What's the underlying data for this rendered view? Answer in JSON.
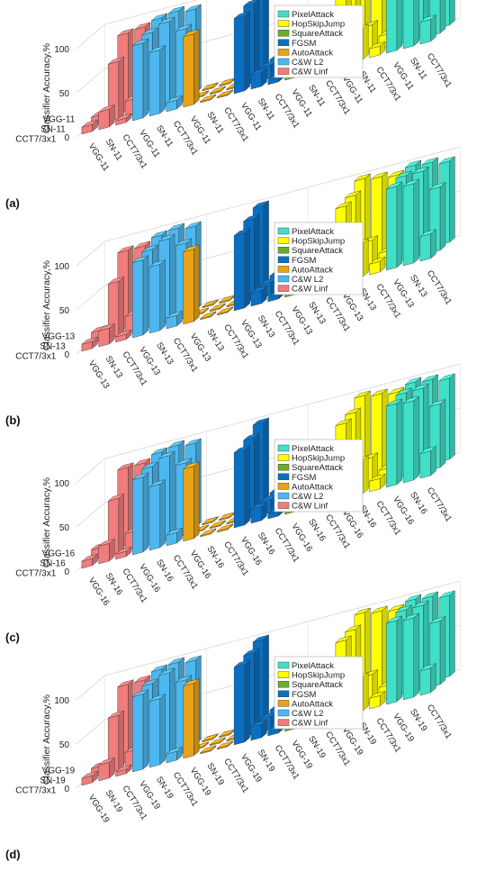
{
  "legend_items": [
    {
      "name": "PixelAttack",
      "color": "#40e0c8"
    },
    {
      "name": "HopSkipJump",
      "color": "#ffff00"
    },
    {
      "name": "SquareAttack",
      "color": "#6aad2a"
    },
    {
      "name": "FGSM",
      "color": "#0a6fc2"
    },
    {
      "name": "AutoAttack",
      "color": "#e8a317"
    },
    {
      "name": "C&W L2",
      "color": "#4db8f0"
    },
    {
      "name": "C&W Linf",
      "color": "#f07c7c"
    }
  ],
  "chart_data": [
    {
      "type": "bar3d",
      "panel_label": "(a)",
      "zlabel": "Classifier Accuracy,%",
      "zlim": [
        0,
        100
      ],
      "z_ticks": [
        "0",
        "50",
        "100"
      ],
      "depth_labels": [
        "CCT7/3x1",
        "SN-11",
        "VGG-11"
      ],
      "x_labels": [
        "VGG-11",
        "SN-11",
        "CCT7/3x1",
        "VGG-11",
        "SN-11",
        "CCT7/3x1",
        "VGG-11",
        "SN-11",
        "CCT7/3x1",
        "VGG-11",
        "SN-11",
        "CCT7/3x1",
        "VGG-11",
        "SN-11",
        "CCT7/3x1",
        "VGG-11",
        "SN-11",
        "CCT7/3x1",
        "VGG-11",
        "SN-11",
        "CCT7/3x1"
      ],
      "series": [
        {
          "name": "C&W Linf",
          "values": [
            [
              8,
              20,
              5
            ],
            [
              10,
              65,
              18
            ],
            [
              2,
              88,
              90
            ]
          ]
        },
        {
          "name": "C&W L2",
          "values": [
            [
              85,
              72,
              10
            ],
            [
              88,
              95,
              82
            ],
            [
              95,
              98,
              95
            ]
          ]
        },
        {
          "name": "AutoAttack",
          "values": [
            [
              80,
              0,
              0
            ],
            [
              0,
              0,
              0
            ],
            [
              0,
              0,
              0
            ]
          ]
        },
        {
          "name": "FGSM",
          "values": [
            [
              85,
              16,
              5
            ],
            [
              90,
              15,
              8
            ],
            [
              98,
              15,
              10
            ]
          ]
        },
        {
          "name": "SquareAttack",
          "values": [
            [
              50,
              15,
              8
            ],
            [
              52,
              20,
              10
            ],
            [
              24,
              20,
              15
            ]
          ]
        },
        {
          "name": "HopSkipJump",
          "values": [
            [
              82,
              35,
              10
            ],
            [
              85,
              30,
              15
            ],
            [
              98,
              95,
              92
            ]
          ]
        },
        {
          "name": "PixelAttack",
          "values": [
            [
              92,
              90,
              25
            ],
            [
              95,
              95,
              70
            ],
            [
              98,
              96,
              90
            ]
          ]
        }
      ]
    },
    {
      "type": "bar3d",
      "panel_label": "(b)",
      "zlabel": "Classifier Accuracy,%",
      "zlim": [
        0,
        100
      ],
      "z_ticks": [
        "0",
        "50",
        "100"
      ],
      "depth_labels": [
        "CCT7/3x1",
        "SN-13",
        "VGG-13"
      ],
      "x_labels": [
        "VGG-13",
        "SN-13",
        "CCT7/3x1",
        "VGG-13",
        "SN-13",
        "CCT7/3x1",
        "VGG-13",
        "SN-13",
        "CCT7/3x1",
        "VGG-13",
        "SN-13",
        "CCT7/3x1",
        "VGG-13",
        "SN-13",
        "CCT7/3x1",
        "VGG-13",
        "SN-13",
        "CCT7/3x1",
        "VGG-13",
        "SN-13",
        "CCT7/3x1"
      ],
      "series": [
        {
          "name": "C&W Linf",
          "values": [
            [
              8,
              18,
              6
            ],
            [
              12,
              62,
              20
            ],
            [
              3,
              88,
              88
            ]
          ]
        },
        {
          "name": "C&W L2",
          "values": [
            [
              85,
              75,
              12
            ],
            [
              88,
              95,
              85
            ],
            [
              95,
              98,
              95
            ]
          ]
        },
        {
          "name": "AutoAttack",
          "values": [
            [
              82,
              0,
              0
            ],
            [
              0,
              0,
              0
            ],
            [
              0,
              0,
              0
            ]
          ]
        },
        {
          "name": "FGSM",
          "values": [
            [
              85,
              15,
              5
            ],
            [
              92,
              15,
              8
            ],
            [
              98,
              16,
              10
            ]
          ]
        },
        {
          "name": "SquareAttack",
          "values": [
            [
              50,
              15,
              8
            ],
            [
              55,
              22,
              12
            ],
            [
              25,
              20,
              15
            ]
          ]
        },
        {
          "name": "HopSkipJump",
          "values": [
            [
              85,
              38,
              12
            ],
            [
              88,
              32,
              15
            ],
            [
              98,
              95,
              92
            ]
          ]
        },
        {
          "name": "PixelAttack",
          "values": [
            [
              92,
              90,
              28
            ],
            [
              95,
              95,
              72
            ],
            [
              98,
              96,
              92
            ]
          ]
        }
      ]
    },
    {
      "type": "bar3d",
      "panel_label": "(c)",
      "zlabel": "Classifier Accuracy,%",
      "zlim": [
        0,
        100
      ],
      "z_ticks": [
        "0",
        "50",
        "100"
      ],
      "depth_labels": [
        "CCT7/3x1",
        "SN-16",
        "VGG-16"
      ],
      "x_labels": [
        "VGG-16",
        "SN-16",
        "CCT7/3x1",
        "VGG-16",
        "SN-16",
        "CCT7/3x1",
        "VGG-16",
        "SN-16",
        "CCT7/3x1",
        "VGG-16",
        "SN-16",
        "CCT7/3x1",
        "VGG-16",
        "SN-16",
        "CCT7/3x1",
        "VGG-16",
        "SN-16",
        "CCT7/3x1",
        "VGG-16",
        "SN-16",
        "CCT7/3x1"
      ],
      "series": [
        {
          "name": "C&W Linf",
          "values": [
            [
              8,
              20,
              6
            ],
            [
              12,
              62,
              20
            ],
            [
              3,
              88,
              88
            ]
          ]
        },
        {
          "name": "C&W L2",
          "values": [
            [
              85,
              72,
              12
            ],
            [
              88,
              95,
              82
            ],
            [
              95,
              98,
              95
            ]
          ]
        },
        {
          "name": "AutoAttack",
          "values": [
            [
              82,
              0,
              0
            ],
            [
              0,
              0,
              0
            ],
            [
              0,
              0,
              0
            ]
          ]
        },
        {
          "name": "FGSM",
          "values": [
            [
              85,
              16,
              6
            ],
            [
              90,
              15,
              8
            ],
            [
              98,
              16,
              10
            ]
          ]
        },
        {
          "name": "SquareAttack",
          "values": [
            [
              52,
              15,
              8
            ],
            [
              55,
              22,
              12
            ],
            [
              26,
              20,
              15
            ]
          ]
        },
        {
          "name": "HopSkipJump",
          "values": [
            [
              85,
              38,
              12
            ],
            [
              88,
              32,
              15
            ],
            [
              98,
              95,
              92
            ]
          ]
        },
        {
          "name": "PixelAttack",
          "values": [
            [
              92,
              90,
              28
            ],
            [
              95,
              95,
              72
            ],
            [
              98,
              96,
              92
            ]
          ]
        }
      ]
    },
    {
      "type": "bar3d",
      "panel_label": "(d)",
      "zlabel": "Classifier Accuracy,%",
      "zlim": [
        0,
        100
      ],
      "z_ticks": [
        "0",
        "50",
        "100"
      ],
      "depth_labels": [
        "CCT7/3x1",
        "SN-19",
        "VGG-19"
      ],
      "x_labels": [
        "VGG-19",
        "SN-19",
        "CCT7/3x1",
        "VGG-19",
        "SN-19",
        "CCT7/3x1",
        "VGG-19",
        "SN-19",
        "CCT7/3x1",
        "VGG-19",
        "SN-19",
        "CCT7/3x1",
        "VGG-19",
        "SN-19",
        "CCT7/3x1",
        "VGG-19",
        "SN-19",
        "CCT7/3x1",
        "VGG-19",
        "SN-19",
        "CCT7/3x1"
      ],
      "series": [
        {
          "name": "C&W Linf",
          "values": [
            [
              8,
              18,
              5
            ],
            [
              10,
              62,
              18
            ],
            [
              3,
              88,
              88
            ]
          ]
        },
        {
          "name": "C&W L2",
          "values": [
            [
              85,
              75,
              10
            ],
            [
              88,
              95,
              82
            ],
            [
              95,
              98,
              95
            ]
          ]
        },
        {
          "name": "AutoAttack",
          "values": [
            [
              82,
              0,
              0
            ],
            [
              0,
              0,
              0
            ],
            [
              0,
              0,
              0
            ]
          ]
        },
        {
          "name": "FGSM",
          "values": [
            [
              88,
              15,
              5
            ],
            [
              92,
              15,
              8
            ],
            [
              98,
              16,
              10
            ]
          ]
        },
        {
          "name": "SquareAttack",
          "values": [
            [
              50,
              15,
              8
            ],
            [
              55,
              22,
              12
            ],
            [
              25,
              20,
              15
            ]
          ]
        },
        {
          "name": "HopSkipJump",
          "values": [
            [
              85,
              38,
              12
            ],
            [
              88,
              32,
              15
            ],
            [
              98,
              95,
              92
            ]
          ]
        },
        {
          "name": "PixelAttack",
          "values": [
            [
              92,
              90,
              28
            ],
            [
              95,
              95,
              72
            ],
            [
              98,
              96,
              92
            ]
          ]
        }
      ]
    }
  ]
}
